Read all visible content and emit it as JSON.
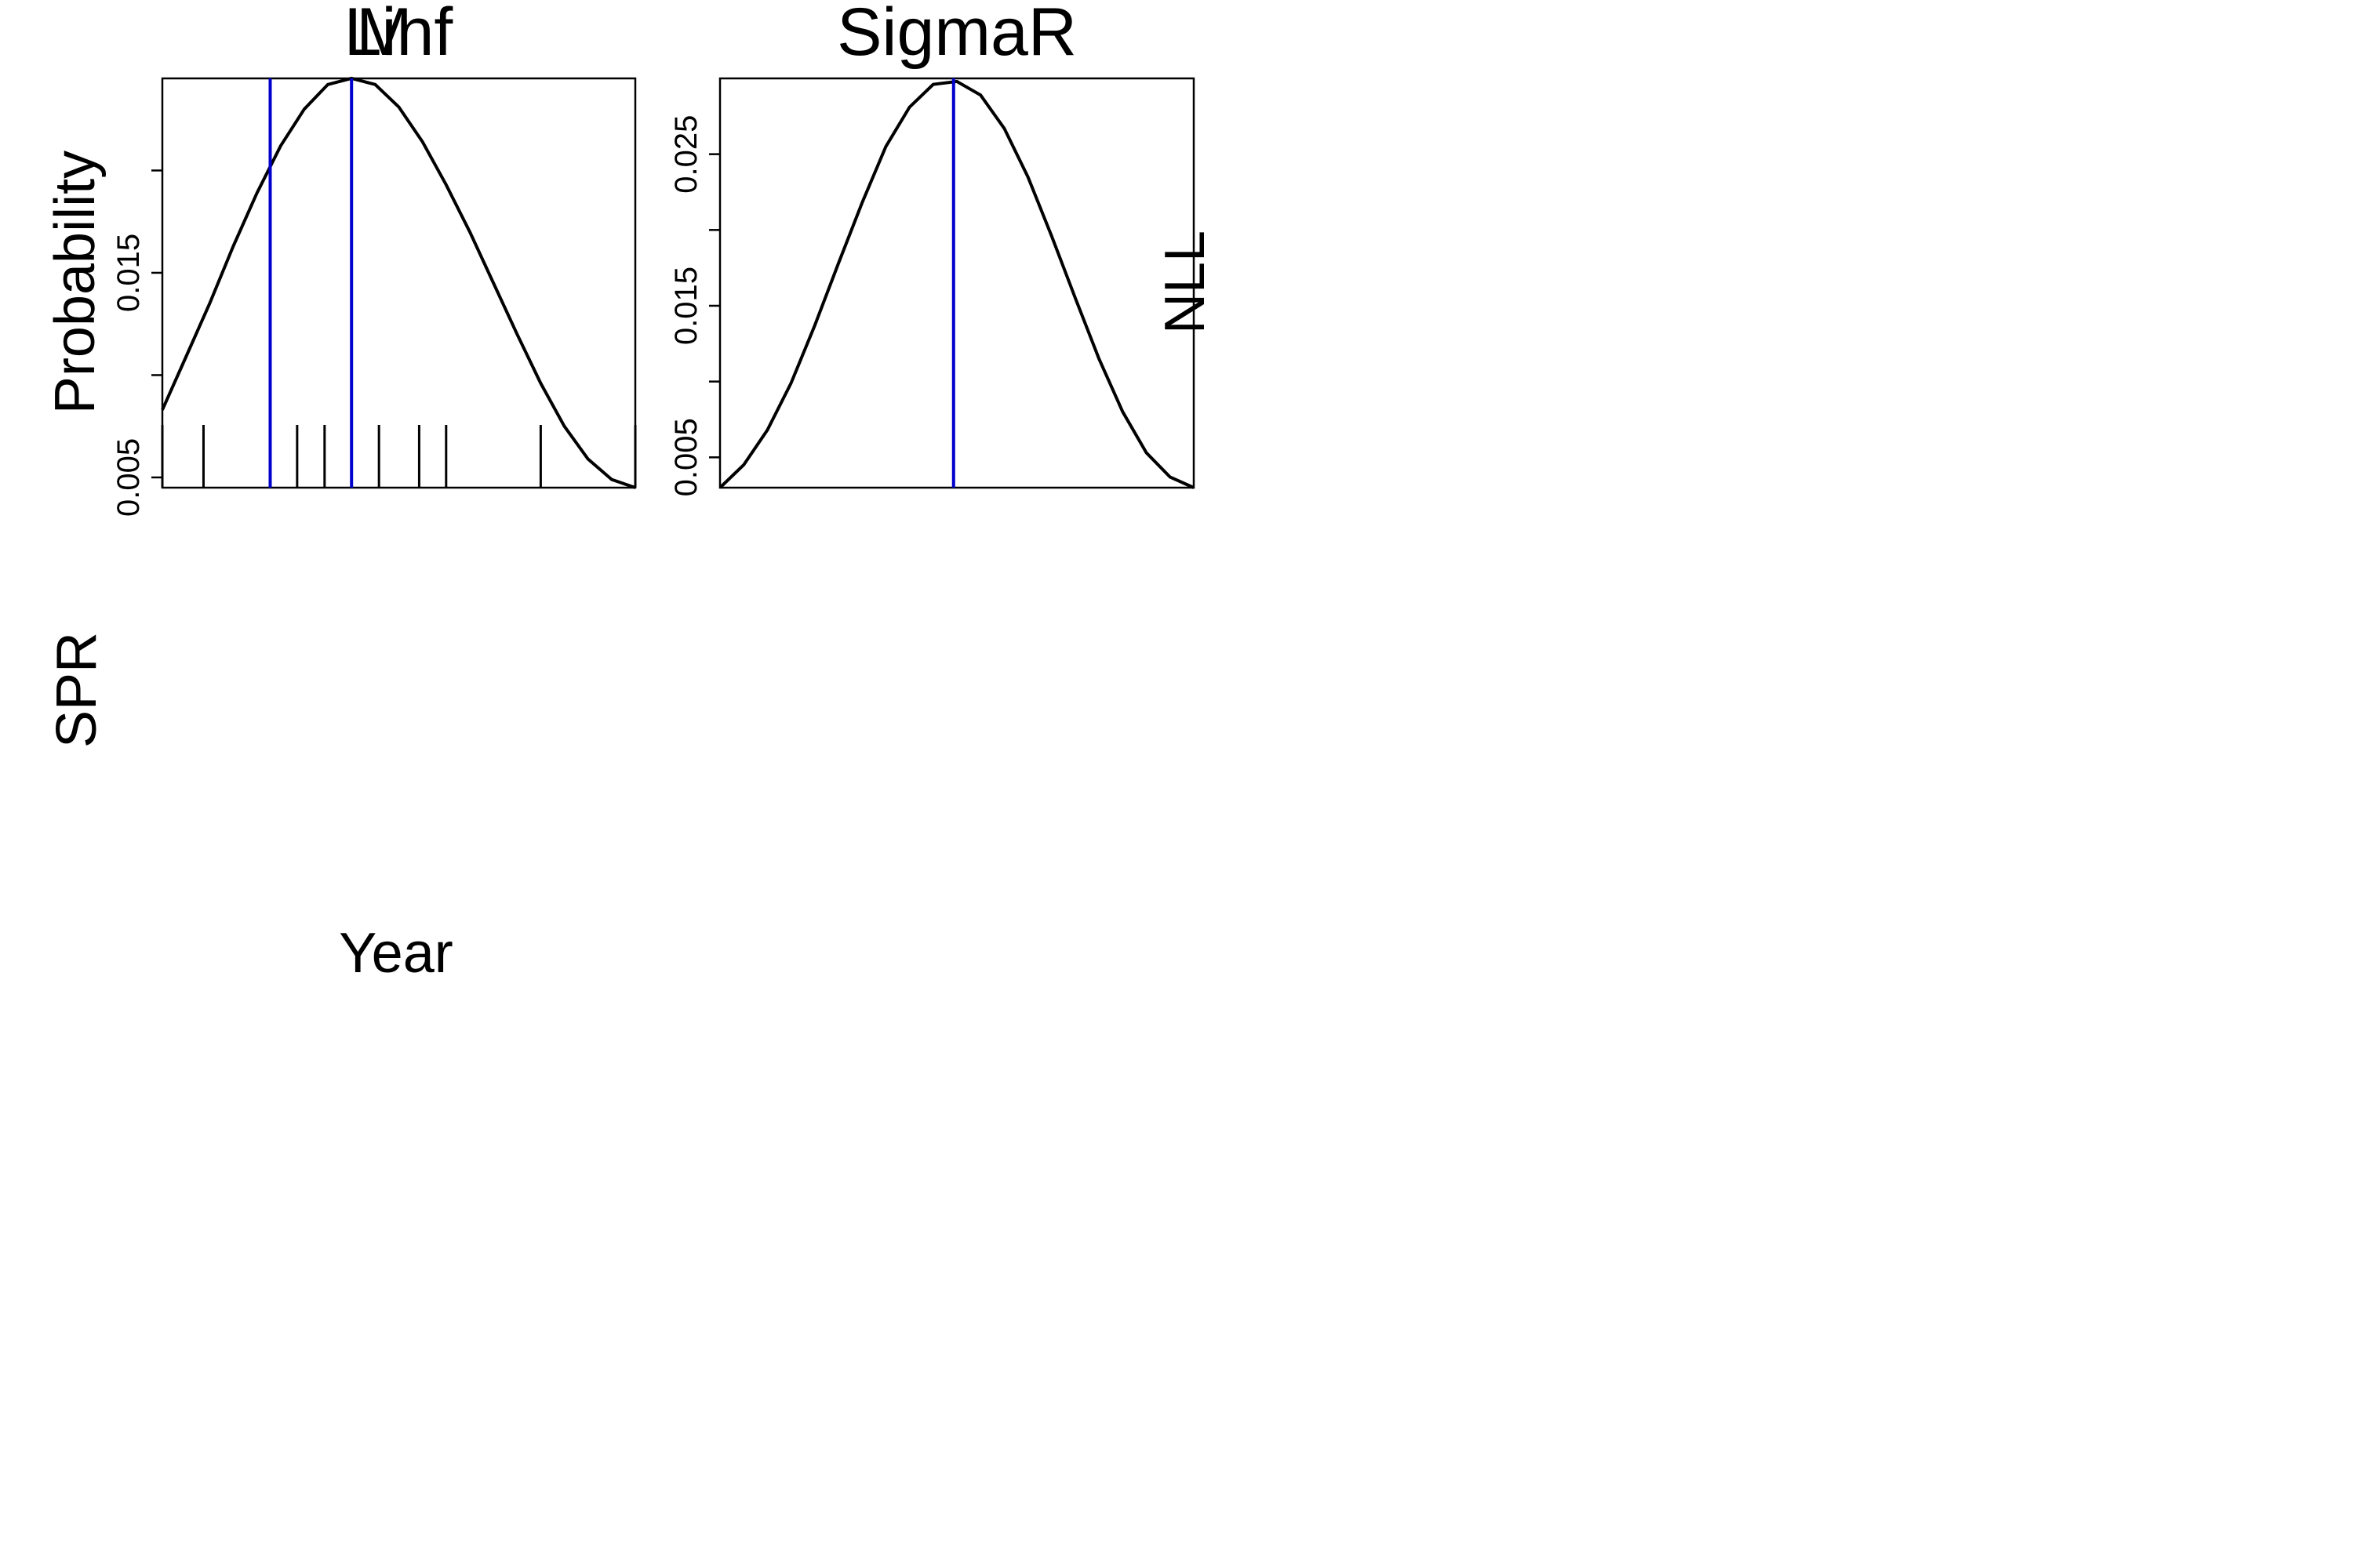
{
  "chart_data": [
    {
      "type": "line",
      "title": "Linf",
      "overlay_title": "M",
      "ylabel": "Probability",
      "xlabel": "",
      "grid": false,
      "ylim": [
        0.0045,
        0.0245
      ],
      "yticks": [
        0.005,
        0.01,
        0.015,
        0.02
      ],
      "ytick_labels": [
        "0.005",
        "",
        "0.015",
        ""
      ],
      "curve": {
        "x": [
          0.0,
          0.05,
          0.1,
          0.15,
          0.2,
          0.25,
          0.3,
          0.35,
          0.4,
          0.45,
          0.5,
          0.55,
          0.6,
          0.65,
          0.7,
          0.75,
          0.8,
          0.85,
          0.9,
          0.95,
          1.0
        ],
        "y": [
          0.0083,
          0.0109,
          0.0135,
          0.0163,
          0.0189,
          0.0212,
          0.023,
          0.0242,
          0.0245,
          0.0242,
          0.0231,
          0.0214,
          0.0193,
          0.017,
          0.0145,
          0.012,
          0.0096,
          0.0075,
          0.0059,
          0.0049,
          0.0045
        ]
      },
      "vlines": [
        0.228,
        0.4
      ],
      "vline_color": "#0000cc",
      "rug": [
        0.0,
        0.087,
        0.285,
        0.343,
        0.458,
        0.543,
        0.6,
        0.8,
        1.0
      ]
    },
    {
      "type": "line",
      "title": "SigmaR",
      "ylabel": "",
      "xlabel": "",
      "grid": false,
      "ylim": [
        0.003,
        0.03
      ],
      "yticks": [
        0.005,
        0.01,
        0.015,
        0.02,
        0.025
      ],
      "ytick_labels": [
        "0.005",
        "",
        "0.015",
        "",
        "0.025"
      ],
      "curve": {
        "x": [
          0.0,
          0.05,
          0.1,
          0.15,
          0.2,
          0.25,
          0.3,
          0.35,
          0.4,
          0.45,
          0.5,
          0.55,
          0.6,
          0.65,
          0.7,
          0.75,
          0.8,
          0.85,
          0.9,
          0.95,
          1.0
        ],
        "y": [
          0.003,
          0.0045,
          0.0068,
          0.0099,
          0.0137,
          0.0178,
          0.0218,
          0.0255,
          0.0281,
          0.0296,
          0.0298,
          0.0289,
          0.0267,
          0.0235,
          0.0196,
          0.0155,
          0.0115,
          0.008,
          0.0053,
          0.0037,
          0.003
        ]
      },
      "vlines": [
        0.493
      ],
      "vline_color": "#0000cc",
      "rug": []
    }
  ],
  "labels": {
    "spr_ylabel": "SPR",
    "nll_ylabel": "NLL",
    "year_xlabel": "Year"
  }
}
